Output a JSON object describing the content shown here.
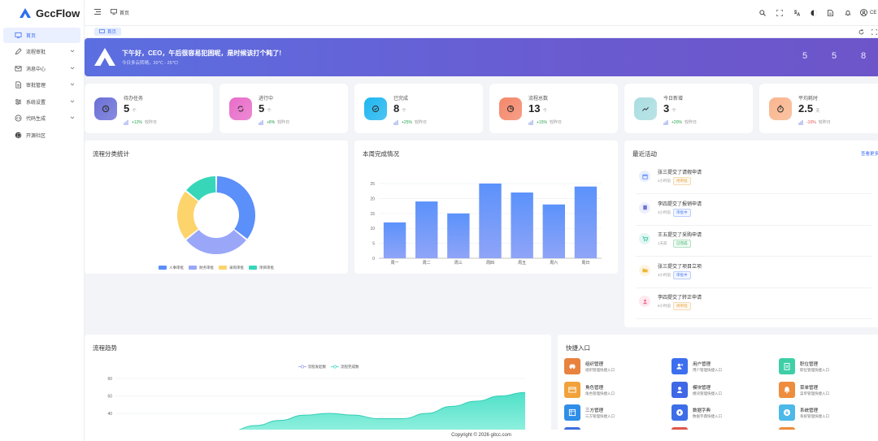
{
  "app": {
    "name": "GccFlow"
  },
  "sidebar": {
    "items": [
      {
        "label": "首页",
        "icon": "monitor-icon",
        "active": true,
        "has_children": false
      },
      {
        "label": "流程审批",
        "icon": "edit-icon",
        "active": false,
        "has_children": true
      },
      {
        "label": "消息中心",
        "icon": "mail-icon",
        "active": false,
        "has_children": true
      },
      {
        "label": "审批管理",
        "icon": "document-icon",
        "active": false,
        "has_children": true
      },
      {
        "label": "系统设置",
        "icon": "sliders-icon",
        "active": false,
        "has_children": true
      },
      {
        "label": "代码生成",
        "icon": "code-icon",
        "active": false,
        "has_children": true
      },
      {
        "label": "开源社区",
        "icon": "github-icon",
        "active": false,
        "has_children": false
      }
    ]
  },
  "topbar": {
    "breadcrumb": "首页",
    "user_label": "CE",
    "icons": [
      "search-icon",
      "fullscreen-icon",
      "language-icon",
      "theme-icon",
      "document-icon",
      "bell-icon",
      "user-icon"
    ]
  },
  "tabs": [
    {
      "label": "首页",
      "active": true
    }
  ],
  "banner": {
    "greeting": "下午好，CEO，午后很容易犯困呢，是时候该打个盹了!",
    "weather": "今日多云转晴，20℃ - 25℃!",
    "stats": [
      {
        "label": "",
        "value": "5"
      },
      {
        "label": "",
        "value": "5"
      },
      {
        "label": "",
        "value": "8"
      }
    ]
  },
  "stat_cards": [
    {
      "title": "待办任务",
      "value": "5",
      "unit": "个",
      "trend": "+12%",
      "compare": "较昨日",
      "direction": "up",
      "color": "#6a6fd6",
      "icon": "clock-icon"
    },
    {
      "title": "进行中",
      "value": "5",
      "unit": "个",
      "trend": "+8%",
      "compare": "较昨日",
      "direction": "up",
      "color": "#e86cc9",
      "icon": "sync-icon"
    },
    {
      "title": "已完成",
      "value": "8",
      "unit": "个",
      "trend": "+25%",
      "compare": "较昨日",
      "direction": "up",
      "color": "#1fb6f0",
      "icon": "check-icon"
    },
    {
      "title": "流程总数",
      "value": "13",
      "unit": "个",
      "trend": "+15%",
      "compare": "较昨日",
      "direction": "up",
      "color": "#f4876a",
      "icon": "chart-icon"
    },
    {
      "title": "今日新增",
      "value": "3",
      "unit": "个",
      "trend": "+20%",
      "compare": "较昨日",
      "direction": "up",
      "color": "#a9dde0",
      "icon": "trend-icon"
    },
    {
      "title": "平均耗时",
      "value": "2.5",
      "unit": "天",
      "trend": "-10%",
      "compare": "较昨日",
      "direction": "down",
      "color": "#f9b58d",
      "icon": "timer-icon"
    }
  ],
  "donut": {
    "title": "流程分类统计"
  },
  "weekly": {
    "title": "本周完成情况"
  },
  "activity": {
    "title": "最近活动",
    "more": "查看更多",
    "items": [
      {
        "title": "张三提交了请假申请",
        "time": "2小时前",
        "status": "待审批",
        "status_color": "#e8a23a",
        "icon": "calendar-icon",
        "icon_color": "#4a7bf7",
        "icon_bg": "#e8efff"
      },
      {
        "title": "李四提交了报销申请",
        "time": "3小时前",
        "status": "审批中",
        "status_color": "#4a7bf7",
        "icon": "receipt-icon",
        "icon_color": "#6c73d8",
        "icon_bg": "#eeeffd"
      },
      {
        "title": "王五提交了采购申请",
        "time": "1天前",
        "status": "已完成",
        "status_color": "#32b464",
        "icon": "cart-icon",
        "icon_color": "#2bbfa0",
        "icon_bg": "#e3f7f2"
      },
      {
        "title": "张三提交了项目立项",
        "time": "3小时前",
        "status": "审批中",
        "status_color": "#4a7bf7",
        "icon": "folder-icon",
        "icon_color": "#f0b63a",
        "icon_bg": "#fdf5e2"
      },
      {
        "title": "李四提交了转正申请",
        "time": "6小时前",
        "status": "待审批",
        "status_color": "#e8a23a",
        "icon": "person-icon",
        "icon_color": "#ef6d8d",
        "icon_bg": "#fde9ee"
      }
    ]
  },
  "trend": {
    "title": "流程趋势"
  },
  "quick": {
    "title": "快捷入口",
    "items": [
      {
        "title": "组织管理",
        "desc": "组织管理快捷入口",
        "color": "#e8823e",
        "icon": "car-icon"
      },
      {
        "title": "用户管理",
        "desc": "用户管理快捷入口",
        "color": "#3c6ff0",
        "icon": "user-add-icon"
      },
      {
        "title": "职位管理",
        "desc": "职位管理快捷入口",
        "color": "#3ecfa6",
        "icon": "clipboard-icon"
      },
      {
        "title": "角色管理",
        "desc": "角色管理快捷入口",
        "color": "#f1a23b",
        "icon": "card-icon"
      },
      {
        "title": "模块管理",
        "desc": "模块管理快捷入口",
        "color": "#3f67e6",
        "icon": "person-icon"
      },
      {
        "title": "菜单管理",
        "desc": "菜单管理快捷入口",
        "color": "#ee8d3d",
        "icon": "bell-icon"
      },
      {
        "title": "三方管理",
        "desc": "三方管理快捷入口",
        "color": "#2f8ee8",
        "icon": "grid-icon"
      },
      {
        "title": "数据字典",
        "desc": "数据字典快捷入口",
        "color": "#3d6ee8",
        "icon": "compass-icon"
      },
      {
        "title": "系统管理",
        "desc": "系统管理快捷入口",
        "color": "#4cb9e9",
        "icon": "download-icon"
      }
    ]
  },
  "footer": {
    "copyright": "Copyright © 2026 gitcc.com"
  },
  "chart_data": [
    {
      "type": "pie",
      "title": "流程分类统计",
      "donut": true,
      "categories": [
        "人事审批",
        "财务审批",
        "采购审批",
        "项目审批"
      ],
      "values": [
        5,
        4,
        3,
        2
      ],
      "colors": [
        "#5b8ff9",
        "#9aa7f8",
        "#fdd36c",
        "#37d6b9"
      ],
      "legend": "bottom"
    },
    {
      "type": "bar",
      "title": "本周完成情况",
      "categories": [
        "周一",
        "周二",
        "周三",
        "周四",
        "周五",
        "周六",
        "周日"
      ],
      "values": [
        12,
        19,
        15,
        25,
        22,
        18,
        24
      ],
      "ylim": [
        0,
        25
      ],
      "yticks": [
        0,
        5,
        10,
        15,
        20,
        25
      ],
      "grid": true,
      "color": "#6f9ffb"
    },
    {
      "type": "area",
      "title": "流程趋势",
      "series": [
        {
          "name": "流程发起数",
          "color": "#9b9cf0",
          "values": []
        },
        {
          "name": "流程完成数",
          "color": "#3fd8c3",
          "values": [
            30,
            33,
            36,
            39,
            40,
            39,
            37,
            37,
            40,
            44,
            47,
            50,
            52
          ]
        }
      ],
      "ylim": [
        30,
        60
      ],
      "yticks": [
        40,
        50,
        60
      ],
      "legend": "top"
    }
  ]
}
